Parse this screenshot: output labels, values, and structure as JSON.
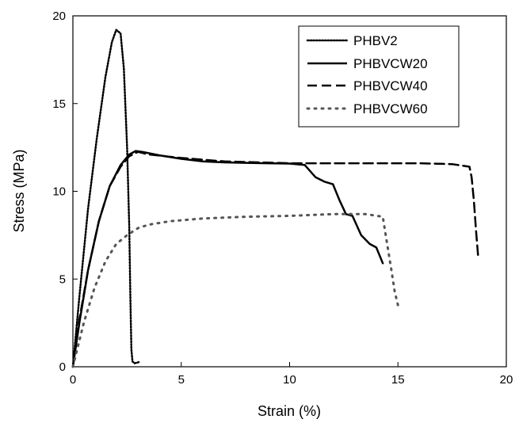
{
  "chart_data": {
    "type": "line",
    "xlabel": "Strain (%)",
    "ylabel": "Stress (MPa)",
    "xlim": [
      0,
      20
    ],
    "ylim": [
      0,
      20
    ],
    "xticks": [
      0,
      5,
      10,
      15,
      20
    ],
    "yticks": [
      0,
      5,
      10,
      15,
      20
    ],
    "grid": false,
    "legend_position": "top-right",
    "series": [
      {
        "name": "PHBV2",
        "style": "dotted-dense",
        "color": "#000000",
        "x": [
          0,
          0.3,
          0.7,
          1.1,
          1.5,
          1.8,
          2.0,
          2.2,
          2.35,
          2.5,
          2.6,
          2.65,
          2.7,
          2.75,
          2.8,
          2.85,
          3.0,
          3.1
        ],
        "y": [
          0,
          4,
          9,
          13,
          16.5,
          18.5,
          19.2,
          19.0,
          17,
          12.5,
          8,
          4,
          1,
          0.3,
          0.25,
          0.2,
          0.25,
          0.3
        ]
      },
      {
        "name": "PHBVCW20",
        "style": "solid",
        "color": "#000000",
        "x": [
          0,
          0.3,
          0.7,
          1.2,
          1.7,
          2.2,
          2.6,
          2.9,
          3.2,
          4,
          5,
          6,
          7,
          8,
          9,
          10,
          10.7,
          11.2,
          11.6,
          12.0,
          12.3,
          12.6,
          12.9,
          13.3,
          13.7,
          14.0,
          14.3
        ],
        "y": [
          0,
          2.5,
          5.5,
          8.3,
          10.3,
          11.5,
          12.1,
          12.3,
          12.25,
          12.05,
          11.85,
          11.7,
          11.65,
          11.62,
          11.6,
          11.58,
          11.5,
          10.8,
          10.55,
          10.4,
          9.5,
          8.7,
          8.6,
          7.5,
          7.0,
          6.8,
          5.9
        ]
      },
      {
        "name": "PHBVCW40",
        "style": "dashed",
        "color": "#000000",
        "x": [
          0,
          0.3,
          0.7,
          1.2,
          1.7,
          2.2,
          2.6,
          3.0,
          3.5,
          5,
          7,
          10,
          12,
          14,
          16,
          17.5,
          18.3,
          18.4,
          18.5,
          18.6,
          18.7
        ],
        "y": [
          0,
          2.7,
          5.5,
          8.3,
          10.3,
          11.4,
          12.0,
          12.25,
          12.1,
          11.9,
          11.7,
          11.6,
          11.6,
          11.6,
          11.6,
          11.55,
          11.4,
          10.8,
          9.5,
          7.8,
          6.3
        ]
      },
      {
        "name": "PHBVCW60",
        "style": "dotted-sparse",
        "color": "#555555",
        "x": [
          0,
          0.5,
          1.0,
          1.5,
          2.0,
          2.5,
          3.0,
          3.5,
          4.5,
          6,
          8,
          10,
          12,
          13.5,
          14.3,
          14.5,
          14.7,
          14.85,
          15.0
        ],
        "y": [
          0,
          2.5,
          4.5,
          6.0,
          7.0,
          7.5,
          7.9,
          8.1,
          8.3,
          8.45,
          8.55,
          8.6,
          8.7,
          8.7,
          8.55,
          7.0,
          5.5,
          4.3,
          3.5
        ]
      }
    ]
  }
}
